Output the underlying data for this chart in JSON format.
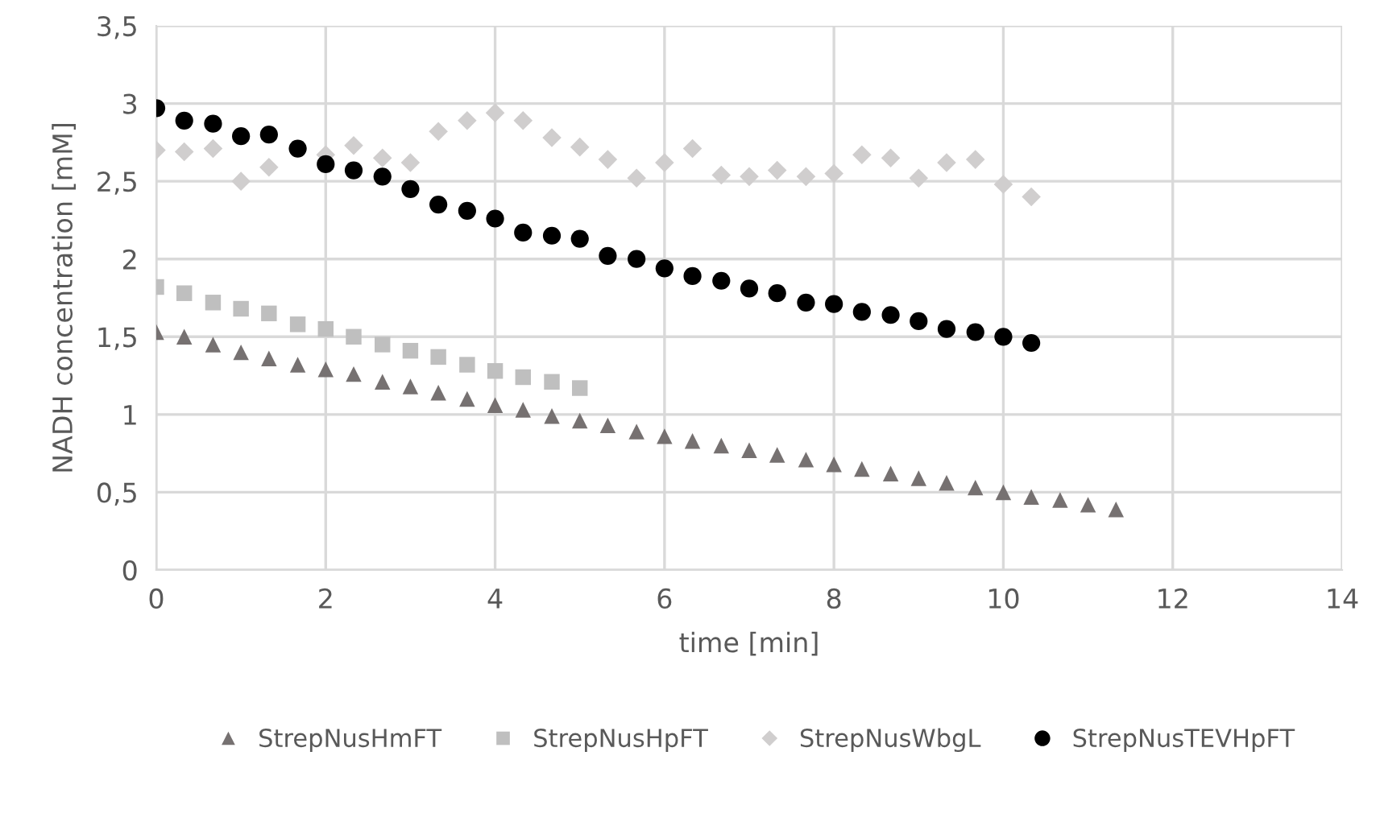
{
  "chart_data": {
    "type": "scatter",
    "xlabel": "time [min]",
    "ylabel": "NADH concentration [mM]",
    "xlim": [
      0,
      14
    ],
    "xticks": [
      0,
      2,
      4,
      6,
      8,
      10,
      12,
      14
    ],
    "ylim": [
      0,
      3.5
    ],
    "yticks": [
      {
        "value": 0,
        "label": "0"
      },
      {
        "value": 0.5,
        "label": "0,5"
      },
      {
        "value": 1,
        "label": "1"
      },
      {
        "value": 1.5,
        "label": "1,5"
      },
      {
        "value": 2,
        "label": "2"
      },
      {
        "value": 2.5,
        "label": "2,5"
      },
      {
        "value": 3,
        "label": "3"
      },
      {
        "value": 3.5,
        "label": "3,5"
      }
    ],
    "grid": true,
    "legend": "bottom",
    "series": [
      {
        "name": "StrepNusHmFT",
        "color": "#767171",
        "marker": "triangle",
        "x": [
          0,
          0.33,
          0.67,
          1,
          1.33,
          1.67,
          2,
          2.33,
          2.67,
          3,
          3.33,
          3.67,
          4,
          4.33,
          4.67,
          5,
          5.33,
          5.67,
          6,
          6.33,
          6.67,
          7,
          7.33,
          7.67,
          8,
          8.33,
          8.67,
          9,
          9.33,
          9.67,
          10,
          10.33,
          10.67,
          11,
          11.33
        ],
        "values": [
          1.53,
          1.5,
          1.45,
          1.4,
          1.36,
          1.32,
          1.29,
          1.26,
          1.21,
          1.18,
          1.14,
          1.1,
          1.06,
          1.03,
          0.99,
          0.96,
          0.93,
          0.89,
          0.86,
          0.83,
          0.8,
          0.77,
          0.74,
          0.71,
          0.68,
          0.65,
          0.62,
          0.59,
          0.56,
          0.53,
          0.5,
          0.47,
          0.45,
          0.42,
          0.39
        ]
      },
      {
        "name": "StrepNusHpFT",
        "color": "#bfbfbf",
        "marker": "square",
        "x": [
          0,
          0.33,
          0.67,
          1,
          1.33,
          1.67,
          2,
          2.33,
          2.67,
          3,
          3.33,
          3.67,
          4,
          4.33,
          4.67,
          5
        ],
        "values": [
          1.82,
          1.78,
          1.72,
          1.68,
          1.65,
          1.58,
          1.55,
          1.5,
          1.45,
          1.41,
          1.37,
          1.32,
          1.28,
          1.24,
          1.21,
          1.17
        ]
      },
      {
        "name": "StrepNusWbgL",
        "color": "#d0cece",
        "marker": "diamond",
        "x": [
          0,
          0.33,
          0.67,
          1,
          1.33,
          1.67,
          2,
          2.33,
          2.67,
          3,
          3.33,
          3.67,
          4,
          4.33,
          4.67,
          5,
          5.33,
          5.67,
          6,
          6.33,
          6.67,
          7,
          7.33,
          7.67,
          8,
          8.33,
          8.67,
          9,
          9.33,
          9.67,
          10,
          10.33
        ],
        "values": [
          2.7,
          2.69,
          2.71,
          2.5,
          2.59,
          null,
          2.67,
          2.73,
          2.65,
          2.62,
          2.82,
          2.89,
          2.94,
          2.89,
          2.78,
          2.72,
          2.64,
          2.52,
          2.62,
          2.71,
          2.54,
          2.53,
          2.57,
          2.53,
          2.55,
          2.67,
          2.65,
          2.52,
          2.62,
          2.64,
          2.48,
          2.4
        ]
      },
      {
        "name": "StrepNusTEVHpFT",
        "color": "#000000",
        "marker": "circle",
        "x": [
          0,
          0.33,
          0.67,
          1,
          1.33,
          1.67,
          2,
          2.33,
          2.67,
          3,
          3.33,
          3.67,
          4,
          4.33,
          4.67,
          5,
          5.33,
          5.67,
          6,
          6.33,
          6.67,
          7,
          7.33,
          7.67,
          8,
          8.33,
          8.67,
          9,
          9.33,
          9.67,
          10,
          10.33
        ],
        "values": [
          2.97,
          2.89,
          2.87,
          2.79,
          2.8,
          2.71,
          2.61,
          2.57,
          2.53,
          2.45,
          2.35,
          2.31,
          2.26,
          2.17,
          2.15,
          2.13,
          2.02,
          2.0,
          1.94,
          1.89,
          1.86,
          1.81,
          1.78,
          1.72,
          1.71,
          1.66,
          1.64,
          1.6,
          1.55,
          1.53,
          1.5,
          1.46
        ]
      }
    ]
  }
}
